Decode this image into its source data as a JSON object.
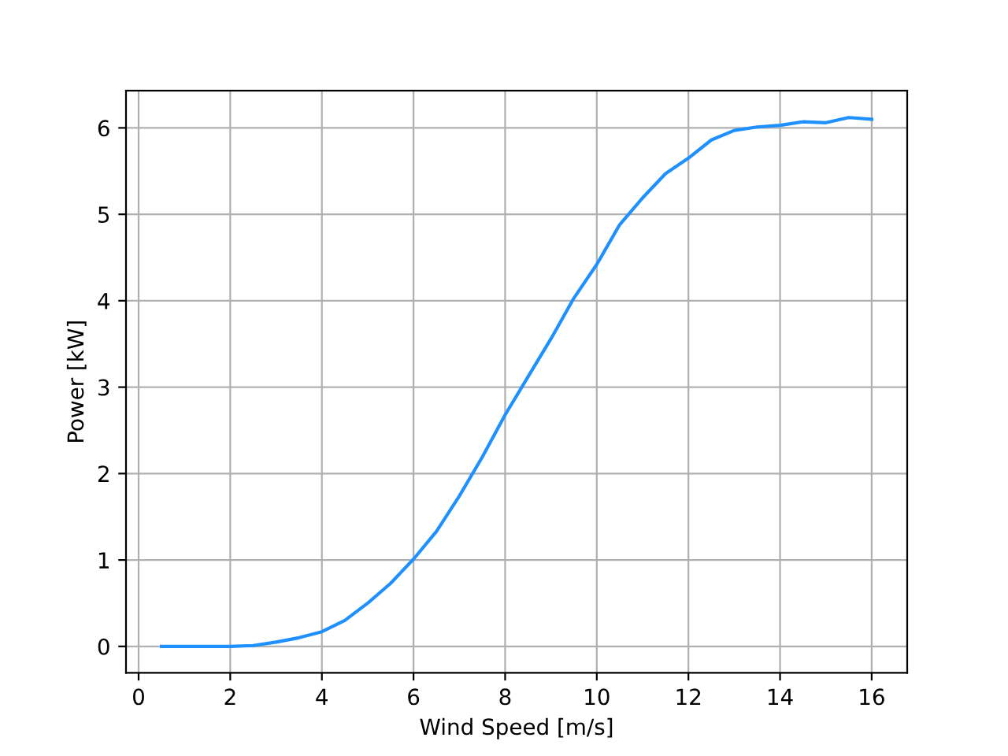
{
  "chart_data": {
    "type": "line",
    "xlabel": "Wind Speed [m/s]",
    "ylabel": "Power [kW]",
    "x": [
      0.5,
      1,
      1.5,
      2,
      2.5,
      3,
      3.5,
      4,
      4.5,
      5,
      5.5,
      6,
      6.5,
      7,
      7.5,
      8,
      8.5,
      9,
      9.5,
      10,
      10.5,
      11,
      11.5,
      12,
      12.5,
      13,
      13.5,
      14,
      14.5,
      15,
      15.5,
      16
    ],
    "series": [
      {
        "color": "#1e90ff",
        "values": [
          0,
          0,
          0,
          0,
          0.01,
          0.05,
          0.1,
          0.17,
          0.3,
          0.5,
          0.73,
          1.01,
          1.33,
          1.74,
          2.19,
          2.68,
          3.12,
          3.56,
          4.03,
          4.42,
          4.88,
          5.19,
          5.47,
          5.65,
          5.86,
          5.97,
          6.01,
          6.03,
          6.07,
          6.06,
          6.12,
          6.1
        ]
      }
    ],
    "xlim": [
      -0.275,
      16.775
    ],
    "ylim": [
      -0.306,
      6.43
    ],
    "xticks": [
      0,
      2,
      4,
      6,
      8,
      10,
      12,
      14,
      16
    ],
    "yticks": [
      0,
      1,
      2,
      3,
      4,
      5,
      6
    ],
    "grid": true
  }
}
